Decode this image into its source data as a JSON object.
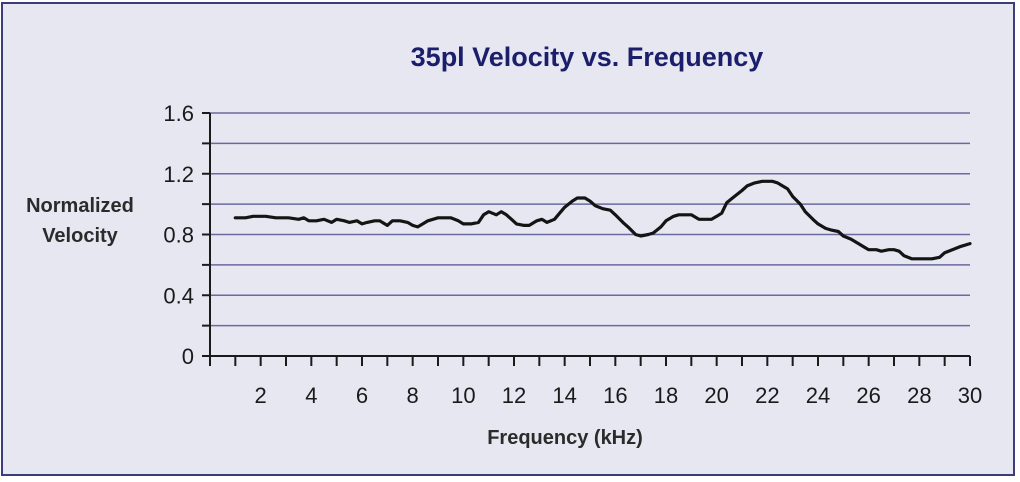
{
  "colors": {
    "background": "#e7e7f2",
    "border": "#3b3d7a",
    "title": "#1b1f6b",
    "grid": "#6a6a9e",
    "axis": "#1a1a1a",
    "line": "#141414"
  },
  "chart_data": {
    "type": "line",
    "title": "35pl Velocity vs. Frequency",
    "xlabel": "Frequency (kHz)",
    "ylabel_lines": [
      "Normalized",
      "Velocity"
    ],
    "xlim": [
      0,
      30
    ],
    "ylim": [
      0,
      1.6
    ],
    "x_ticks": [
      2,
      4,
      6,
      8,
      10,
      12,
      14,
      16,
      18,
      20,
      22,
      24,
      26,
      28,
      30
    ],
    "x_tick_labels": [
      "2",
      "4",
      "6",
      "8",
      "10",
      "12",
      "14",
      "16",
      "18",
      "20",
      "22",
      "24",
      "26",
      "28",
      "30"
    ],
    "y_ticks": [
      0,
      0.4,
      0.8,
      1.2,
      1.6
    ],
    "y_tick_labels": [
      "0",
      "0.4",
      "0.8",
      "1.2",
      "1.6"
    ],
    "y_grid": [
      0.2,
      0.4,
      0.6,
      0.8,
      1.0,
      1.2,
      1.4,
      1.6
    ],
    "grid": true,
    "series": [
      {
        "name": "35pl",
        "x": [
          1.0,
          1.4,
          1.7,
          2.2,
          2.6,
          2.8,
          3.1,
          3.5,
          3.7,
          3.9,
          4.2,
          4.5,
          4.8,
          5.0,
          5.3,
          5.5,
          5.8,
          6.0,
          6.2,
          6.5,
          6.7,
          7.0,
          7.2,
          7.5,
          7.8,
          8.0,
          8.2,
          8.4,
          8.6,
          9.0,
          9.2,
          9.5,
          9.8,
          10.0,
          10.3,
          10.6,
          10.8,
          11.0,
          11.3,
          11.5,
          11.7,
          11.9,
          12.1,
          12.4,
          12.6,
          12.9,
          13.1,
          13.3,
          13.6,
          13.8,
          14.0,
          14.3,
          14.5,
          14.8,
          15.0,
          15.2,
          15.5,
          15.8,
          16.0,
          16.3,
          16.5,
          16.8,
          17.0,
          17.3,
          17.5,
          17.8,
          18.0,
          18.3,
          18.5,
          18.8,
          19.0,
          19.3,
          19.6,
          19.8,
          20.0,
          20.2,
          20.4,
          20.7,
          21.0,
          21.2,
          21.5,
          21.8,
          22.0,
          22.2,
          22.4,
          22.6,
          22.8,
          23.0,
          23.3,
          23.5,
          23.8,
          24.0,
          24.3,
          24.5,
          24.8,
          25.0,
          25.3,
          25.6,
          25.8,
          26.0,
          26.3,
          26.5,
          26.8,
          27.0,
          27.2,
          27.4,
          27.7,
          27.9,
          28.2,
          28.5,
          28.8,
          29.0,
          29.3,
          29.6,
          30.0
        ],
        "values": [
          0.91,
          0.91,
          0.92,
          0.92,
          0.91,
          0.91,
          0.91,
          0.9,
          0.91,
          0.89,
          0.89,
          0.9,
          0.88,
          0.9,
          0.89,
          0.88,
          0.89,
          0.87,
          0.88,
          0.89,
          0.89,
          0.86,
          0.89,
          0.89,
          0.88,
          0.86,
          0.85,
          0.87,
          0.89,
          0.91,
          0.91,
          0.91,
          0.89,
          0.87,
          0.87,
          0.88,
          0.93,
          0.95,
          0.93,
          0.95,
          0.93,
          0.9,
          0.87,
          0.86,
          0.86,
          0.89,
          0.9,
          0.88,
          0.9,
          0.94,
          0.98,
          1.02,
          1.04,
          1.04,
          1.02,
          0.99,
          0.97,
          0.96,
          0.93,
          0.88,
          0.85,
          0.8,
          0.79,
          0.8,
          0.81,
          0.85,
          0.89,
          0.92,
          0.93,
          0.93,
          0.93,
          0.9,
          0.9,
          0.9,
          0.92,
          0.94,
          1.01,
          1.05,
          1.09,
          1.12,
          1.14,
          1.15,
          1.15,
          1.15,
          1.14,
          1.12,
          1.1,
          1.05,
          1.0,
          0.95,
          0.9,
          0.87,
          0.84,
          0.83,
          0.82,
          0.79,
          0.77,
          0.74,
          0.72,
          0.7,
          0.7,
          0.69,
          0.7,
          0.7,
          0.69,
          0.66,
          0.64,
          0.64,
          0.64,
          0.64,
          0.65,
          0.68,
          0.7,
          0.72,
          0.74
        ]
      }
    ]
  }
}
